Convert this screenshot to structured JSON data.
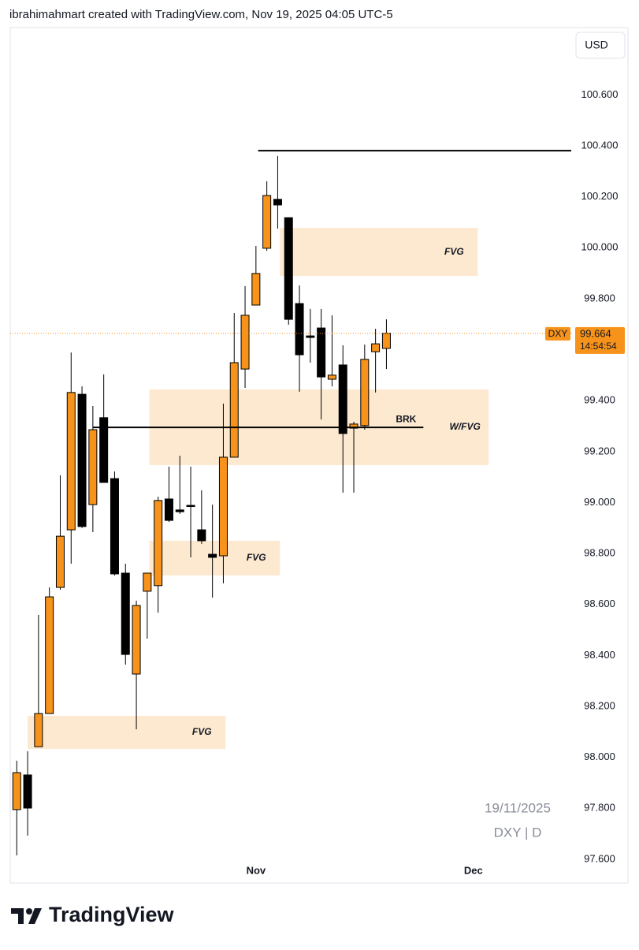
{
  "header": "ibrahimahmart created with TradingView.com, Nov 19, 2025 04:05 UTC-5",
  "brand": "TradingView",
  "chart_data": {
    "type": "candlestick",
    "currency": "USD",
    "watermark": [
      "19/11/2025",
      "DXY | D"
    ],
    "x": [
      0,
      1,
      2,
      3,
      4,
      5,
      6,
      7,
      8,
      9,
      10,
      11,
      12,
      13,
      14,
      15,
      16,
      17,
      18,
      19,
      20,
      21,
      22,
      23,
      24,
      25,
      26,
      27,
      28,
      29,
      30,
      31,
      32,
      33,
      34
    ],
    "open": [
      97.795,
      97.931,
      98.042,
      98.172,
      98.667,
      98.893,
      99.425,
      98.992,
      99.333,
      99.094,
      98.723,
      98.327,
      98.652,
      98.674,
      99.014,
      98.971,
      98.989,
      98.893,
      98.797,
      98.791,
      99.178,
      99.524,
      99.775,
      99.998,
      100.19,
      100.118,
      99.781,
      99.654,
      99.685,
      99.484,
      99.54,
      99.292,
      99.302,
      99.592,
      99.605
    ],
    "high": [
      97.987,
      98.024,
      98.559,
      98.667,
      99.107,
      99.589,
      99.456,
      99.379,
      99.503,
      99.122,
      98.76,
      98.615,
      98.723,
      99.023,
      99.141,
      99.184,
      99.141,
      99.048,
      98.992,
      99.388,
      99.744,
      99.849,
      100.007,
      100.261,
      100.36,
      100.118,
      99.852,
      99.76,
      99.76,
      99.735,
      99.617,
      99.317,
      99.62,
      99.682,
      99.719
    ],
    "low": [
      97.615,
      97.693,
      98.042,
      98.172,
      98.658,
      98.76,
      98.9,
      98.884,
      99.079,
      98.714,
      98.364,
      98.11,
      98.466,
      98.568,
      98.924,
      98.955,
      98.785,
      98.838,
      98.627,
      98.683,
      99.178,
      99.45,
      99.775,
      99.988,
      100.075,
      99.698,
      99.435,
      99.549,
      99.326,
      99.456,
      99.039,
      99.039,
      99.286,
      99.432,
      99.524
    ],
    "close": [
      97.94,
      97.801,
      98.172,
      98.63,
      98.868,
      99.432,
      98.906,
      99.286,
      99.079,
      98.72,
      98.404,
      98.596,
      98.723,
      99.008,
      98.93,
      98.964,
      98.986,
      98.85,
      98.785,
      99.178,
      99.549,
      99.735,
      99.899,
      100.205,
      100.168,
      99.719,
      99.58,
      99.648,
      99.493,
      99.5,
      99.271,
      99.308,
      99.562,
      99.623,
      99.664
    ],
    "up_color": "#f7931a",
    "down_color": "#000000",
    "last_price": {
      "symbol": "DXY",
      "value": 99.664,
      "countdown": "14:54:54"
    },
    "zones": [
      {
        "label": "FVG",
        "x": [
          1.0,
          19.2
        ],
        "y": [
          98.033,
          98.163
        ]
      },
      {
        "label": "FVG",
        "x": [
          12.2,
          24.2
        ],
        "y": [
          98.714,
          98.85
        ]
      },
      {
        "label": "W/FVG",
        "x": [
          12.2,
          43.4
        ],
        "y": [
          99.147,
          99.444
        ]
      },
      {
        "label": "FVG",
        "x": [
          24.2,
          42.4
        ],
        "y": [
          99.889,
          100.078
        ]
      }
    ],
    "zone_color": "#fde9d0",
    "lines": [
      {
        "x": [
          22.2,
          51
        ],
        "y": 100.381
      },
      {
        "label": "BRK",
        "x": [
          7.0,
          37.4
        ],
        "y": 99.295
      }
    ],
    "xlim": [
      -0.6,
      51
    ],
    "xticks": [
      {
        "value": 22,
        "label": "Nov"
      },
      {
        "value": 42,
        "label": "Dec"
      }
    ],
    "ylim": [
      97.507,
      100.864
    ],
    "yticks": [
      {
        "value": 97.6,
        "label": "97.600"
      },
      {
        "value": 97.8,
        "label": "97.800"
      },
      {
        "value": 98.0,
        "label": "98.000"
      },
      {
        "value": 98.2,
        "label": "98.200"
      },
      {
        "value": 98.4,
        "label": "98.400"
      },
      {
        "value": 98.6,
        "label": "98.600"
      },
      {
        "value": 98.8,
        "label": "98.800"
      },
      {
        "value": 99.0,
        "label": "99.000"
      },
      {
        "value": 99.2,
        "label": "99.200"
      },
      {
        "value": 99.4,
        "label": "99.400"
      },
      {
        "value": 99.6,
        "label": "99.600"
      },
      {
        "value": 99.8,
        "label": "99.800"
      },
      {
        "value": 100.0,
        "label": "100.000"
      },
      {
        "value": 100.2,
        "label": "100.200"
      },
      {
        "value": 100.4,
        "label": "100.400"
      },
      {
        "value": 100.6,
        "label": "100.600"
      }
    ]
  }
}
